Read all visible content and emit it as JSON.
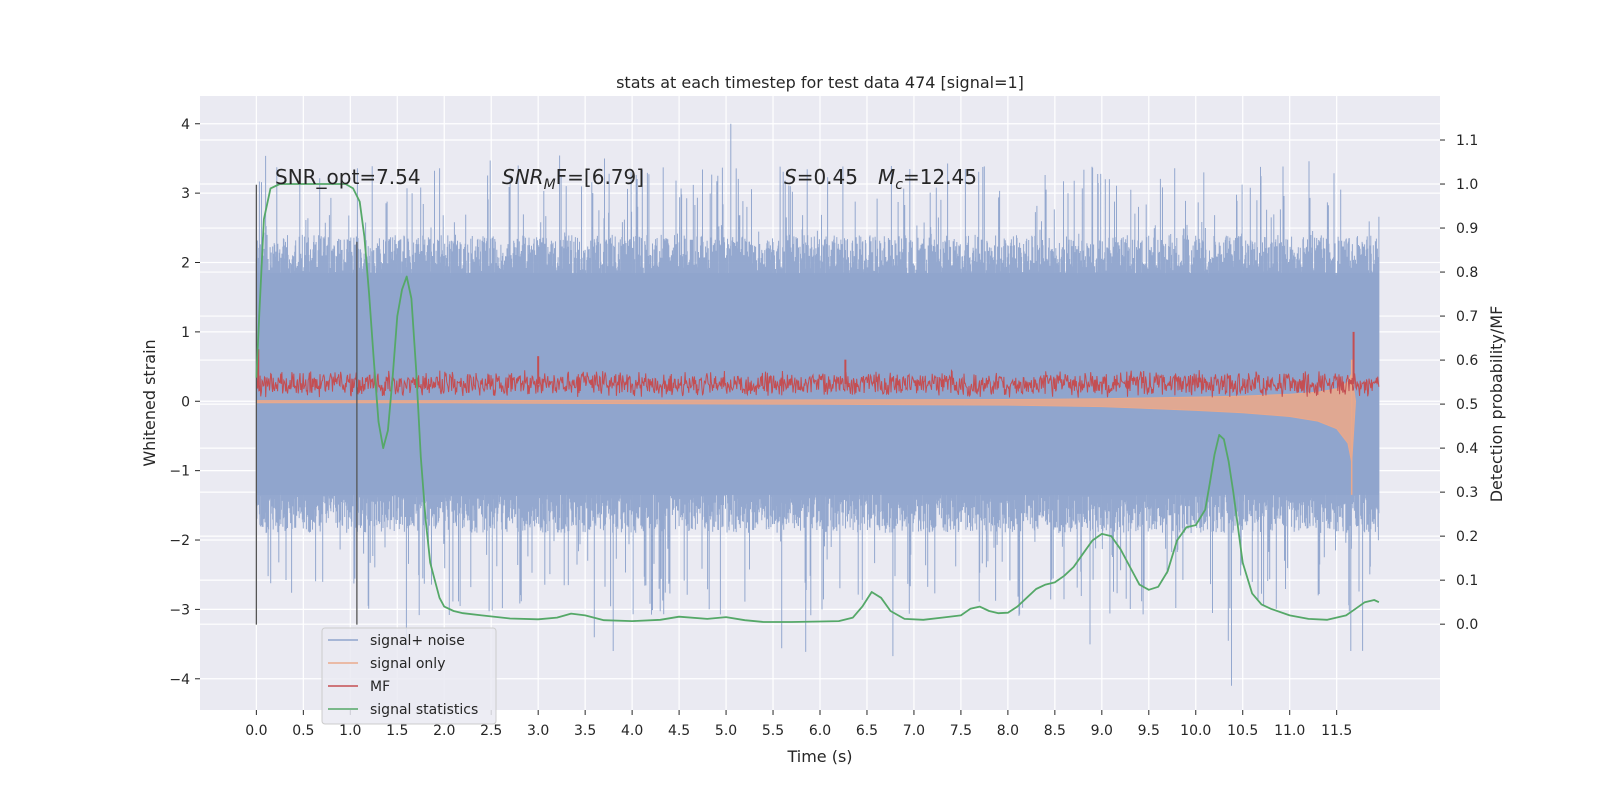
{
  "chart_data": {
    "type": "line",
    "title": "stats at each timestep for test data 474 [signal=1]",
    "xlabel": "Time (s)",
    "ylabel": "Whitened strain",
    "ylabel_right": "Detection probability/MF",
    "xlim": [
      -0.6,
      12.6
    ],
    "ylim_left": [
      -4.45,
      4.4
    ],
    "ylim_right": [
      -0.195,
      1.2
    ],
    "x_ticks": [
      "0.0",
      "0.5",
      "1.0",
      "1.5",
      "2.0",
      "2.5",
      "3.0",
      "3.5",
      "4.0",
      "4.5",
      "5.0",
      "5.5",
      "6.0",
      "6.5",
      "7.0",
      "7.5",
      "8.0",
      "8.5",
      "9.0",
      "9.5",
      "10.0",
      "10.5",
      "11.0",
      "11.5"
    ],
    "y_ticks_left": [
      "4",
      "3",
      "2",
      "1",
      "0",
      "−1",
      "−2",
      "−3",
      "−4"
    ],
    "y_ticks_right": [
      "1.1",
      "1.0",
      "0.9",
      "0.8",
      "0.7",
      "0.6",
      "0.5",
      "0.4",
      "0.3",
      "0.2",
      "0.1",
      "0.0"
    ],
    "grid": true,
    "legend_position": "lower-left",
    "annotations": {
      "snr_opt": "SNR_opt=7.54",
      "snr_mf_italic": "SNR",
      "snr_mf_sub": "M",
      "snr_mf_rest": "F=[6.79]",
      "s_italic": "S",
      "s_rest": "=0.45",
      "mc_italic": "M",
      "mc_sub": "c",
      "mc_rest": "=12.45"
    },
    "vertical_lines_x": [
      0.0,
      1.07
    ],
    "series": [
      {
        "name": "signal+ noise",
        "color": "#8fa4cc",
        "envelope": {
          "x_range": [
            0.0,
            11.95
          ],
          "typical_band": [
            -1.35,
            1.85
          ],
          "peak_max": [
            3.6,
            4.0
          ],
          "peak_min": [
            -3.7,
            -4.1
          ]
        }
      },
      {
        "name": "signal only",
        "color": "#e9a98c",
        "chirp": {
          "x": [
            0.0,
            2.0,
            4.0,
            6.0,
            8.0,
            9.0,
            10.0,
            10.5,
            11.0,
            11.3,
            11.5,
            11.62,
            11.66,
            11.7
          ],
          "half_amplitude": [
            0.02,
            0.02,
            0.03,
            0.04,
            0.05,
            0.07,
            0.12,
            0.15,
            0.2,
            0.26,
            0.36,
            0.55,
            0.8,
            0.0
          ]
        }
      },
      {
        "name": "MF",
        "color": "#c44e52",
        "band": {
          "x_range": [
            0.0,
            11.95
          ],
          "center": 0.25,
          "half_width": 0.17,
          "spikes": [
            [
              0.02,
              0.75
            ],
            [
              11.68,
              1.0
            ],
            [
              6.27,
              0.6
            ],
            [
              3.0,
              0.65
            ]
          ]
        }
      },
      {
        "name": "signal statistics",
        "color": "#55a868",
        "x": [
          0.0,
          0.03,
          0.08,
          0.15,
          0.25,
          0.4,
          0.6,
          0.8,
          0.95,
          1.03,
          1.1,
          1.15,
          1.2,
          1.25,
          1.3,
          1.35,
          1.4,
          1.45,
          1.5,
          1.55,
          1.6,
          1.65,
          1.7,
          1.75,
          1.8,
          1.85,
          1.9,
          1.95,
          2.0,
          2.1,
          2.2,
          2.4,
          2.7,
          3.0,
          3.2,
          3.35,
          3.5,
          3.7,
          4.0,
          4.3,
          4.5,
          4.8,
          5.0,
          5.2,
          5.4,
          5.7,
          6.0,
          6.2,
          6.35,
          6.45,
          6.55,
          6.65,
          6.75,
          6.9,
          7.1,
          7.3,
          7.5,
          7.6,
          7.7,
          7.8,
          7.9,
          8.0,
          8.1,
          8.2,
          8.3,
          8.4,
          8.5,
          8.6,
          8.7,
          8.8,
          8.9,
          9.0,
          9.1,
          9.2,
          9.3,
          9.4,
          9.5,
          9.6,
          9.7,
          9.8,
          9.9,
          10.0,
          10.1,
          10.15,
          10.2,
          10.25,
          10.3,
          10.35,
          10.4,
          10.5,
          10.6,
          10.7,
          10.8,
          11.0,
          11.2,
          11.4,
          11.6,
          11.7,
          11.8,
          11.9,
          11.95
        ],
        "y": [
          0.56,
          0.7,
          0.92,
          0.99,
          1.0,
          1.0,
          1.0,
          1.0,
          1.0,
          0.99,
          0.96,
          0.88,
          0.75,
          0.6,
          0.46,
          0.4,
          0.44,
          0.56,
          0.7,
          0.76,
          0.79,
          0.74,
          0.58,
          0.38,
          0.24,
          0.14,
          0.1,
          0.06,
          0.04,
          0.03,
          0.025,
          0.02,
          0.013,
          0.011,
          0.015,
          0.024,
          0.02,
          0.009,
          0.007,
          0.01,
          0.017,
          0.012,
          0.016,
          0.009,
          0.005,
          0.005,
          0.006,
          0.007,
          0.015,
          0.04,
          0.073,
          0.06,
          0.03,
          0.012,
          0.01,
          0.015,
          0.02,
          0.035,
          0.04,
          0.03,
          0.025,
          0.026,
          0.04,
          0.06,
          0.08,
          0.09,
          0.095,
          0.11,
          0.13,
          0.16,
          0.19,
          0.205,
          0.2,
          0.17,
          0.13,
          0.09,
          0.078,
          0.085,
          0.12,
          0.19,
          0.22,
          0.225,
          0.26,
          0.32,
          0.385,
          0.43,
          0.42,
          0.37,
          0.3,
          0.14,
          0.07,
          0.045,
          0.035,
          0.02,
          0.012,
          0.01,
          0.02,
          0.035,
          0.05,
          0.055,
          0.05
        ]
      }
    ]
  }
}
